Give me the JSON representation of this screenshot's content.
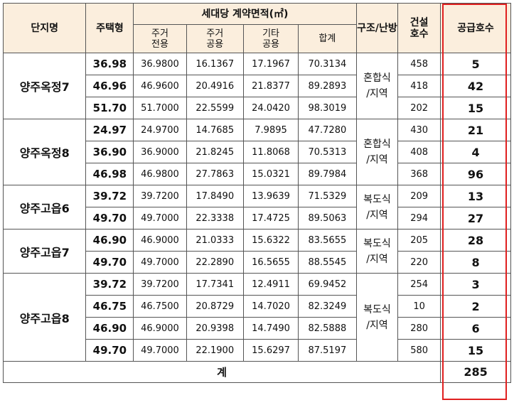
{
  "headers": {
    "complex": "단지명",
    "type": "주택형",
    "area_group": "세대당 계약면적(㎡)",
    "exclusive": [
      "주거",
      "전용"
    ],
    "common": [
      "주거",
      "공용"
    ],
    "other": [
      "기타",
      "공용"
    ],
    "sum": "합계",
    "structure": "구조/난방",
    "built": [
      "건설",
      "호수"
    ],
    "supply": "공급호수"
  },
  "complexes": [
    {
      "name": "양주옥정7",
      "system": [
        "혼합식",
        "/지역"
      ],
      "rows": [
        {
          "type": "36.98",
          "exclusive": "36.9800",
          "common": "16.1367",
          "other": "17.1967",
          "sum": "70.3134",
          "built": "458",
          "supply": "5"
        },
        {
          "type": "46.96",
          "exclusive": "46.9600",
          "common": "20.4916",
          "other": "21.8377",
          "sum": "89.2893",
          "built": "418",
          "supply": "42"
        },
        {
          "type": "51.70",
          "exclusive": "51.7000",
          "common": "22.5599",
          "other": "24.0420",
          "sum": "98.3019",
          "built": "202",
          "supply": "15"
        }
      ]
    },
    {
      "name": "양주옥정8",
      "system": [
        "혼합식",
        "/지역"
      ],
      "rows": [
        {
          "type": "24.97",
          "exclusive": "24.9700",
          "common": "14.7685",
          "other": "7.9895",
          "sum": "47.7280",
          "built": "430",
          "supply": "21"
        },
        {
          "type": "36.90",
          "exclusive": "36.9000",
          "common": "21.8245",
          "other": "11.8068",
          "sum": "70.5313",
          "built": "408",
          "supply": "4"
        },
        {
          "type": "46.98",
          "exclusive": "46.9800",
          "common": "27.7863",
          "other": "15.0321",
          "sum": "89.7984",
          "built": "368",
          "supply": "96"
        }
      ]
    },
    {
      "name": "양주고읍6",
      "system": [
        "복도식",
        "/지역"
      ],
      "rows": [
        {
          "type": "39.72",
          "exclusive": "39.7200",
          "common": "17.8490",
          "other": "13.9639",
          "sum": "71.5329",
          "built": "209",
          "supply": "13"
        },
        {
          "type": "49.70",
          "exclusive": "49.7000",
          "common": "22.3338",
          "other": "17.4725",
          "sum": "89.5063",
          "built": "294",
          "supply": "27"
        }
      ]
    },
    {
      "name": "양주고읍7",
      "system": [
        "복도식",
        "/지역"
      ],
      "rows": [
        {
          "type": "46.90",
          "exclusive": "46.9000",
          "common": "21.0333",
          "other": "15.6322",
          "sum": "83.5655",
          "built": "205",
          "supply": "28"
        },
        {
          "type": "49.70",
          "exclusive": "49.7000",
          "common": "22.2890",
          "other": "16.5655",
          "sum": "88.5545",
          "built": "220",
          "supply": "8"
        }
      ]
    },
    {
      "name": "양주고읍8",
      "system": [
        "복도식",
        "/지역"
      ],
      "rows": [
        {
          "type": "39.72",
          "exclusive": "39.7200",
          "common": "17.7341",
          "other": "12.4911",
          "sum": "69.9452",
          "built": "254",
          "supply": "3"
        },
        {
          "type": "46.75",
          "exclusive": "46.7500",
          "common": "20.8729",
          "other": "14.7020",
          "sum": "82.3249",
          "built": "10",
          "supply": "2"
        },
        {
          "type": "46.90",
          "exclusive": "46.9000",
          "common": "20.9398",
          "other": "14.7490",
          "sum": "82.5888",
          "built": "280",
          "supply": "6"
        },
        {
          "type": "49.70",
          "exclusive": "49.7000",
          "common": "22.1900",
          "other": "15.6297",
          "sum": "87.5197",
          "built": "580",
          "supply": "15"
        }
      ]
    }
  ],
  "total": {
    "label": "계",
    "supply": "285"
  },
  "colors": {
    "header_bg": "#fbeedd",
    "highlight": "#e02020",
    "border": "#555555"
  }
}
